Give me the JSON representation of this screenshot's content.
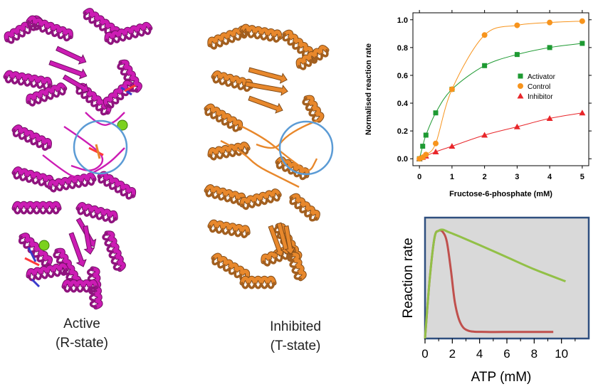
{
  "structures": {
    "active": {
      "caption_line1": "Active",
      "caption_line2": "(R-state)",
      "color": "#cc1cb4"
    },
    "inhibited": {
      "caption_line1": "Inhibited",
      "caption_line2": "(T-state)",
      "color": "#e8882c"
    },
    "highlight_color": "#5b9bd5"
  },
  "chart_data": [
    {
      "type": "scatter",
      "title": "",
      "xlabel": "Fructose-6-phosphate (mM)",
      "ylabel": "Normalised reaction rate",
      "xlim": [
        -0.2,
        5.2
      ],
      "ylim": [
        -0.05,
        1.05
      ],
      "xticks": [
        "0",
        "1",
        "2",
        "3",
        "4",
        "5"
      ],
      "yticks": [
        "0.0",
        "0.2",
        "0.4",
        "0.6",
        "0.8",
        "1.0"
      ],
      "legend_position": "right",
      "series": [
        {
          "name": "Activator",
          "marker": "square",
          "color": "#1e9a32",
          "x": [
            0,
            0.1,
            0.2,
            0.5,
            1,
            2,
            3,
            4,
            5
          ],
          "y": [
            0.0,
            0.09,
            0.17,
            0.33,
            0.5,
            0.67,
            0.75,
            0.8,
            0.83
          ]
        },
        {
          "name": "Control",
          "marker": "circle",
          "color": "#f7941d",
          "x": [
            0,
            0.1,
            0.2,
            0.5,
            1,
            2,
            3,
            4,
            5
          ],
          "y": [
            0.0,
            0.01,
            0.03,
            0.11,
            0.5,
            0.89,
            0.96,
            0.98,
            0.99
          ]
        },
        {
          "name": "Inhibitor",
          "marker": "triangle",
          "color": "#e8262a",
          "x": [
            0,
            0.1,
            0.2,
            0.5,
            1,
            2,
            3,
            4,
            5
          ],
          "y": [
            0.0,
            0.01,
            0.02,
            0.05,
            0.09,
            0.17,
            0.23,
            0.29,
            0.33
          ]
        }
      ]
    },
    {
      "type": "line",
      "title": "",
      "xlabel": "ATP (mM)",
      "ylabel": "Reaction rate",
      "xlim": [
        0,
        12
      ],
      "ylim": [
        0,
        1.1
      ],
      "xticks": [
        "0",
        "2",
        "4",
        "6",
        "8",
        "10"
      ],
      "background": "#d9d9d9",
      "frame_color": "#2f4f7f",
      "series": [
        {
          "color": "#92c047",
          "x": [
            0,
            0.35,
            0.7,
            1.0,
            1.3,
            1.7,
            2.5,
            4,
            6,
            8,
            10.3
          ],
          "y": [
            0,
            0.55,
            0.92,
            0.98,
            0.99,
            0.97,
            0.93,
            0.85,
            0.74,
            0.63,
            0.52
          ]
        },
        {
          "color": "#c0504d",
          "x": [
            0,
            0.35,
            0.7,
            1.0,
            1.3,
            1.6,
            1.9,
            2.2,
            2.6,
            3.2,
            4.5,
            6.5,
            9.4
          ],
          "y": [
            0,
            0.55,
            0.92,
            0.98,
            0.97,
            0.88,
            0.62,
            0.32,
            0.14,
            0.07,
            0.06,
            0.06,
            0.06
          ]
        }
      ]
    }
  ]
}
